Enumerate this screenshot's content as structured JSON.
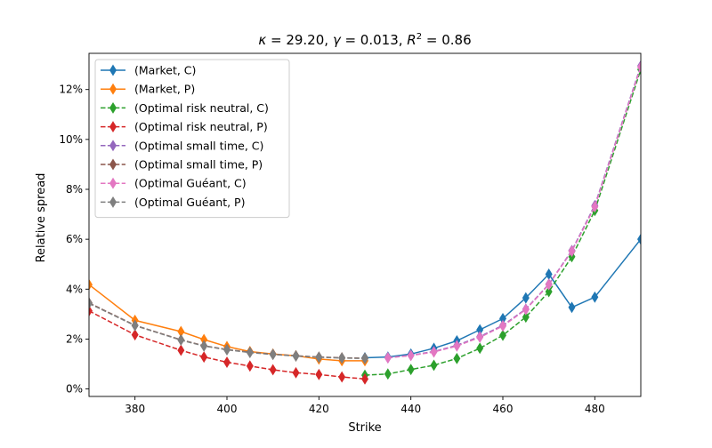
{
  "chart_data": {
    "type": "line",
    "title": "κ = 29.20, γ = 0.013, R² = 0.86",
    "title_parts": {
      "kappa_symbol": "κ",
      "kappa_value": " = 29.20, ",
      "gamma_symbol": "γ",
      "gamma_value": " = 0.013, ",
      "r2_symbol": "R",
      "r2_exp": "2",
      "r2_value": " = 0.86"
    },
    "xlabel": "Strike",
    "ylabel": "Relative spread",
    "xlim": [
      370,
      490
    ],
    "ylim": [
      -0.003,
      0.1345
    ],
    "xticks": [
      380,
      400,
      420,
      440,
      460,
      480
    ],
    "yticks": [
      0,
      0.02,
      0.04,
      0.06,
      0.08,
      0.1,
      0.12
    ],
    "ytick_labels": [
      "0%",
      "2%",
      "4%",
      "6%",
      "8%",
      "10%",
      "12%"
    ],
    "legend_position": "top-left",
    "grid": false,
    "series": [
      {
        "name": "(Market, C)",
        "color": "#1f77b4",
        "linestyle": "solid",
        "marker": "thin-diamond",
        "x": [
          430,
          435,
          440,
          445,
          450,
          455,
          460,
          465,
          470,
          475,
          480,
          490
        ],
        "y": [
          0.0125,
          0.0128,
          0.014,
          0.0163,
          0.0193,
          0.0237,
          0.0282,
          0.0365,
          0.046,
          0.0327,
          0.0368,
          0.06
        ]
      },
      {
        "name": "(Market, P)",
        "color": "#ff7f0e",
        "linestyle": "solid",
        "marker": "thin-diamond",
        "x": [
          370,
          380,
          390,
          395,
          400,
          405,
          410,
          415,
          420,
          425,
          430
        ],
        "y": [
          0.0418,
          0.0275,
          0.023,
          0.0198,
          0.017,
          0.015,
          0.014,
          0.0133,
          0.012,
          0.0113,
          0.0113
        ]
      },
      {
        "name": "(Optimal risk neutral, C)",
        "color": "#2ca02c",
        "linestyle": "dashed",
        "marker": "thin-diamond",
        "x": [
          430,
          435,
          440,
          445,
          450,
          455,
          460,
          465,
          470,
          475,
          480,
          490
        ],
        "y": [
          0.0055,
          0.006,
          0.0078,
          0.0095,
          0.0122,
          0.0163,
          0.0215,
          0.0288,
          0.039,
          0.053,
          0.0715,
          0.128
        ]
      },
      {
        "name": "(Optimal risk neutral, P)",
        "color": "#d62728",
        "linestyle": "dashed",
        "marker": "thin-diamond",
        "x": [
          370,
          380,
          390,
          395,
          400,
          405,
          410,
          415,
          420,
          425,
          430
        ],
        "y": [
          0.0313,
          0.0217,
          0.0155,
          0.0128,
          0.0107,
          0.0092,
          0.0077,
          0.0065,
          0.0058,
          0.0048,
          0.004
        ]
      },
      {
        "name": "(Optimal small time, C)",
        "color": "#9467bd",
        "linestyle": "dashed",
        "marker": "thin-diamond",
        "x": [
          435,
          440,
          445,
          450,
          455,
          460,
          465,
          470,
          475,
          480,
          490
        ],
        "y": [
          0.0125,
          0.0135,
          0.015,
          0.0175,
          0.021,
          0.0255,
          0.032,
          0.042,
          0.0555,
          0.0735,
          0.1295
        ]
      },
      {
        "name": "(Optimal small time, P)",
        "color": "#8c564b",
        "linestyle": "dashed",
        "marker": "thin-diamond",
        "x": [
          370,
          380,
          390,
          395,
          400,
          405,
          410,
          415,
          420,
          425,
          430
        ],
        "y": [
          0.0345,
          0.0255,
          0.0197,
          0.0173,
          0.0158,
          0.0147,
          0.0139,
          0.0133,
          0.0128,
          0.0125,
          0.0123
        ]
      },
      {
        "name": "(Optimal Guéant, C)",
        "color": "#e377c2",
        "linestyle": "dashed",
        "marker": "thin-diamond",
        "x": [
          435,
          440,
          445,
          450,
          455,
          460,
          465,
          470,
          475,
          480,
          490
        ],
        "y": [
          0.0125,
          0.0134,
          0.0148,
          0.0172,
          0.0207,
          0.0252,
          0.0318,
          0.0418,
          0.0552,
          0.073,
          0.129
        ]
      },
      {
        "name": "(Optimal Guéant, P)",
        "color": "#7f7f7f",
        "linestyle": "dashed",
        "marker": "thin-diamond",
        "x": [
          370,
          380,
          390,
          395,
          400,
          405,
          410,
          415,
          420,
          425,
          430
        ],
        "y": [
          0.0343,
          0.0254,
          0.0196,
          0.0172,
          0.0157,
          0.0146,
          0.0138,
          0.0132,
          0.0127,
          0.0124,
          0.0122
        ]
      }
    ]
  }
}
